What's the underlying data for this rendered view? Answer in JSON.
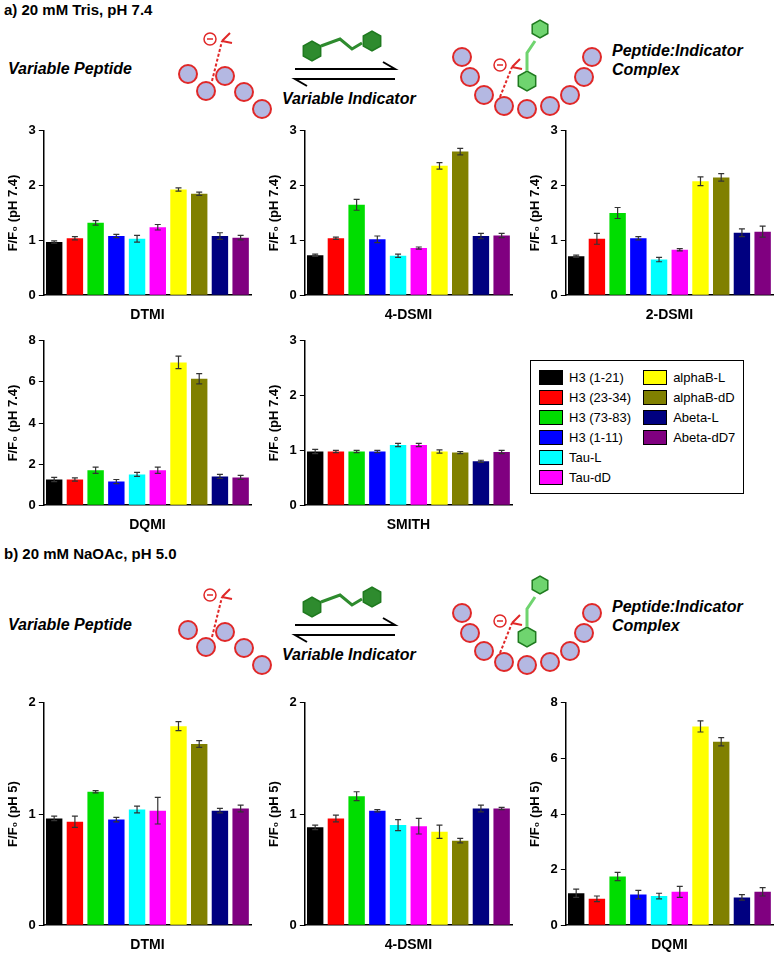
{
  "sections": [
    {
      "title": "a) 20 mM Tris, pH 7.4",
      "scheme": {
        "peptide": "Variable Peptide",
        "indicator": "Variable Indicator",
        "complex": "Peptide:Indicator Complex"
      }
    },
    {
      "title": "b) 20 mM NaOAc, pH 5.0",
      "scheme": {
        "peptide": "Variable Peptide",
        "indicator": "Variable Indicator",
        "complex": "Peptide:Indicator Complex"
      }
    }
  ],
  "chart_data": [
    {
      "type": "bar",
      "x_label": "DTMI",
      "y_label": "F/F₀ (pH 7.4)",
      "categories": [
        "H3 (1-21)",
        "H3 (23-34)",
        "H3 (73-83)",
        "H3 (1-11)",
        "Tau-L",
        "Tau-dD",
        "alphaB-L",
        "alphaB-dD",
        "Abeta-L",
        "Abeta-dD7"
      ],
      "values": [
        0.97,
        1.04,
        1.32,
        1.08,
        1.03,
        1.24,
        1.93,
        1.85,
        1.08,
        1.05
      ],
      "errors": [
        0.02,
        0.03,
        0.04,
        0.03,
        0.06,
        0.05,
        0.03,
        0.03,
        0.06,
        0.04
      ],
      "colors": [
        "#000000",
        "#ff0000",
        "#00dd00",
        "#0000ff",
        "#00ffff",
        "#ff00ff",
        "#ffff00",
        "#808000",
        "#000080",
        "#800080"
      ],
      "ylim": [
        0,
        3
      ],
      "yticks": [
        0,
        1,
        2,
        3
      ],
      "grid": false,
      "tick_labels": "y"
    },
    {
      "type": "bar",
      "x_label": "4-DSMI",
      "y_label": "F/F₀ (pH 7.4)",
      "categories": [
        "H3 (1-21)",
        "H3 (23-34)",
        "H3 (73-83)",
        "H3 (1-11)",
        "Tau-L",
        "Tau-dD",
        "alphaB-L",
        "alphaB-dD",
        "Abeta-L",
        "Abeta-dD7"
      ],
      "values": [
        0.73,
        1.04,
        1.65,
        1.02,
        0.72,
        0.86,
        2.36,
        2.62,
        1.08,
        1.09
      ],
      "errors": [
        0.02,
        0.02,
        0.1,
        0.06,
        0.03,
        0.02,
        0.06,
        0.06,
        0.05,
        0.04
      ],
      "colors": [
        "#000000",
        "#ff0000",
        "#00dd00",
        "#0000ff",
        "#00ffff",
        "#ff00ff",
        "#ffff00",
        "#808000",
        "#000080",
        "#800080"
      ],
      "ylim": [
        0,
        3
      ],
      "yticks": [
        0,
        1,
        2,
        3
      ],
      "grid": false,
      "tick_labels": "y"
    },
    {
      "type": "bar",
      "x_label": "2-DSMI",
      "y_label": "F/F₀ (pH 7.4)",
      "categories": [
        "H3 (1-21)",
        "H3 (23-34)",
        "H3 (73-83)",
        "H3 (1-11)",
        "Tau-L",
        "Tau-dD",
        "alphaB-L",
        "alphaB-dD",
        "Abeta-L",
        "Abeta-dD7"
      ],
      "values": [
        0.71,
        1.03,
        1.5,
        1.04,
        0.65,
        0.83,
        2.08,
        2.15,
        1.14,
        1.16
      ],
      "errors": [
        0.02,
        0.1,
        0.1,
        0.03,
        0.04,
        0.02,
        0.08,
        0.07,
        0.07,
        0.1
      ],
      "colors": [
        "#000000",
        "#ff0000",
        "#00dd00",
        "#0000ff",
        "#00ffff",
        "#ff00ff",
        "#ffff00",
        "#808000",
        "#000080",
        "#800080"
      ],
      "ylim": [
        0,
        3
      ],
      "yticks": [
        0,
        1,
        2,
        3
      ],
      "grid": false,
      "tick_labels": "y"
    },
    {
      "type": "bar",
      "x_label": "DQMI",
      "y_label": "F/F₀ (pH 7.4)",
      "categories": [
        "H3 (1-21)",
        "H3 (23-34)",
        "H3 (73-83)",
        "H3 (1-11)",
        "Tau-L",
        "Tau-dD",
        "alphaB-L",
        "alphaB-dD",
        "Abeta-L",
        "Abeta-dD7"
      ],
      "values": [
        1.25,
        1.25,
        1.7,
        1.15,
        1.5,
        1.7,
        6.95,
        6.15,
        1.4,
        1.35
      ],
      "errors": [
        0.1,
        0.08,
        0.15,
        0.1,
        0.1,
        0.15,
        0.3,
        0.25,
        0.1,
        0.1
      ],
      "colors": [
        "#000000",
        "#ff0000",
        "#00dd00",
        "#0000ff",
        "#00ffff",
        "#ff00ff",
        "#ffff00",
        "#808000",
        "#000080",
        "#800080"
      ],
      "ylim": [
        0,
        8
      ],
      "yticks": [
        0,
        2,
        4,
        6,
        8
      ],
      "grid": false,
      "tick_labels": "y"
    },
    {
      "type": "bar",
      "x_label": "SMITH",
      "y_label": "F/F₀ (pH 7.4)",
      "categories": [
        "H3 (1-21)",
        "H3 (23-34)",
        "H3 (73-83)",
        "H3 (1-11)",
        "Tau-L",
        "Tau-dD",
        "alphaB-L",
        "alphaB-dD",
        "Abeta-L",
        "Abeta-dD7"
      ],
      "values": [
        0.98,
        0.98,
        0.98,
        0.98,
        1.1,
        1.1,
        0.98,
        0.96,
        0.8,
        0.97
      ],
      "errors": [
        0.04,
        0.02,
        0.02,
        0.02,
        0.03,
        0.03,
        0.03,
        0.02,
        0.02,
        0.03
      ],
      "colors": [
        "#000000",
        "#ff0000",
        "#00dd00",
        "#0000ff",
        "#00ffff",
        "#ff00ff",
        "#ffff00",
        "#808000",
        "#000080",
        "#800080"
      ],
      "ylim": [
        0,
        3
      ],
      "yticks": [
        0,
        1,
        2,
        3
      ],
      "grid": false,
      "tick_labels": "y",
      "legend": "right"
    },
    {
      "type": "bar",
      "x_label": "DTMI",
      "y_label": "F/F₀ (pH 5)",
      "categories": [
        "H3 (1-21)",
        "H3 (23-34)",
        "H3 (73-83)",
        "H3 (1-11)",
        "Tau-L",
        "Tau-dD",
        "alphaB-L",
        "alphaB-dD",
        "Abeta-L",
        "Abeta-dD7"
      ],
      "values": [
        0.96,
        0.93,
        1.2,
        0.95,
        1.04,
        1.03,
        1.79,
        1.63,
        1.03,
        1.05
      ],
      "errors": [
        0.02,
        0.05,
        0.01,
        0.02,
        0.03,
        0.12,
        0.04,
        0.03,
        0.02,
        0.03
      ],
      "colors": [
        "#000000",
        "#ff0000",
        "#00dd00",
        "#0000ff",
        "#00ffff",
        "#ff00ff",
        "#ffff00",
        "#808000",
        "#000080",
        "#800080"
      ],
      "ylim": [
        0,
        2
      ],
      "yticks": [
        0,
        1,
        2
      ],
      "grid": false,
      "tick_labels": "y"
    },
    {
      "type": "bar",
      "x_label": "4-DSMI",
      "y_label": "F/F₀ (pH 5)",
      "categories": [
        "H3 (1-21)",
        "H3 (23-34)",
        "H3 (73-83)",
        "H3 (1-11)",
        "Tau-L",
        "Tau-dD",
        "alphaB-L",
        "alphaB-dD",
        "Abeta-L",
        "Abeta-dD7"
      ],
      "values": [
        0.88,
        0.96,
        1.16,
        1.03,
        0.9,
        0.89,
        0.84,
        0.76,
        1.05,
        1.05
      ],
      "errors": [
        0.02,
        0.03,
        0.04,
        0.01,
        0.05,
        0.07,
        0.06,
        0.02,
        0.03,
        0.01
      ],
      "colors": [
        "#000000",
        "#ff0000",
        "#00dd00",
        "#0000ff",
        "#00ffff",
        "#ff00ff",
        "#ffff00",
        "#808000",
        "#000080",
        "#800080"
      ],
      "ylim": [
        0,
        2
      ],
      "yticks": [
        0,
        1,
        2
      ],
      "grid": false,
      "tick_labels": "y"
    },
    {
      "type": "bar",
      "x_label": "DQMI",
      "y_label": "F/F₀ (pH 5)",
      "categories": [
        "H3 (1-21)",
        "H3 (23-34)",
        "H3 (73-83)",
        "H3 (1-11)",
        "Tau-L",
        "Tau-dD",
        "alphaB-L",
        "alphaB-dD",
        "Abeta-L",
        "Abeta-dD7"
      ],
      "values": [
        1.15,
        0.95,
        1.75,
        1.1,
        1.05,
        1.2,
        7.15,
        6.6,
        1.0,
        1.2
      ],
      "errors": [
        0.15,
        0.1,
        0.15,
        0.15,
        0.1,
        0.2,
        0.2,
        0.15,
        0.1,
        0.15
      ],
      "colors": [
        "#000000",
        "#ff0000",
        "#00dd00",
        "#0000ff",
        "#00ffff",
        "#ff00ff",
        "#ffff00",
        "#808000",
        "#000080",
        "#800080"
      ],
      "ylim": [
        0,
        8
      ],
      "yticks": [
        0,
        2,
        4,
        6,
        8
      ],
      "grid": false,
      "tick_labels": "y"
    }
  ]
}
